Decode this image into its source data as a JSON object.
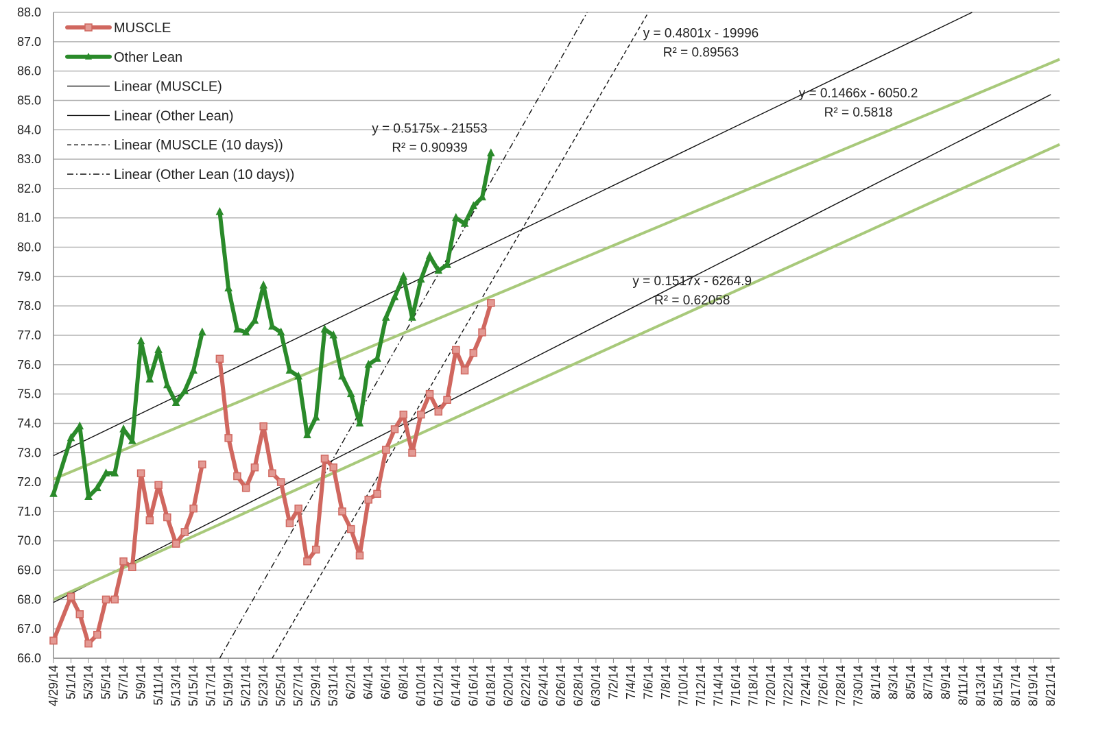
{
  "chart_data": {
    "type": "line",
    "title": "",
    "xlabel": "",
    "ylabel": "",
    "ylim": [
      66.0,
      88.0
    ],
    "yticks": [
      "66.0",
      "67.0",
      "68.0",
      "69.0",
      "70.0",
      "71.0",
      "72.0",
      "73.0",
      "74.0",
      "75.0",
      "76.0",
      "77.0",
      "78.0",
      "79.0",
      "80.0",
      "81.0",
      "82.0",
      "83.0",
      "84.0",
      "85.0",
      "86.0",
      "87.0",
      "88.0"
    ],
    "xlim": [
      "4/29/14",
      "8/22/14"
    ],
    "xticks": [
      "4/29/14",
      "5/1/14",
      "5/3/14",
      "5/5/14",
      "5/7/14",
      "5/9/14",
      "5/11/14",
      "5/13/14",
      "5/15/14",
      "5/17/14",
      "5/19/14",
      "5/21/14",
      "5/23/14",
      "5/25/14",
      "5/27/14",
      "5/29/14",
      "5/31/14",
      "6/2/14",
      "6/4/14",
      "6/6/14",
      "6/8/14",
      "6/10/14",
      "6/12/14",
      "6/14/14",
      "6/16/14",
      "6/18/14",
      "6/20/14",
      "6/22/14",
      "6/24/14",
      "6/26/14",
      "6/28/14",
      "6/30/14",
      "7/2/14",
      "7/4/14",
      "7/6/14",
      "7/8/14",
      "7/10/14",
      "7/12/14",
      "7/14/14",
      "7/16/14",
      "7/18/14",
      "7/20/14",
      "7/22/14",
      "7/24/14",
      "7/26/14",
      "7/28/14",
      "7/30/14",
      "8/1/14",
      "8/3/14",
      "8/5/14",
      "8/7/14",
      "8/9/14",
      "8/11/14",
      "8/13/14",
      "8/15/14",
      "8/17/14",
      "8/19/14",
      "8/21/14"
    ],
    "grid": true,
    "legend_position": "top-left",
    "series": [
      {
        "name": "MUSCLE",
        "color": "#d0675f",
        "marker": "square",
        "points": [
          [
            "4/29/14",
            66.6
          ],
          [
            "5/1/14",
            68.1
          ],
          [
            "5/2/14",
            67.5
          ],
          [
            "5/3/14",
            66.5
          ],
          [
            "5/4/14",
            66.8
          ],
          [
            "5/5/14",
            68.0
          ],
          [
            "5/6/14",
            68.0
          ],
          [
            "5/7/14",
            69.3
          ],
          [
            "5/8/14",
            69.1
          ],
          [
            "5/9/14",
            72.3
          ],
          [
            "5/10/14",
            70.7
          ],
          [
            "5/11/14",
            71.9
          ],
          [
            "5/12/14",
            70.8
          ],
          [
            "5/13/14",
            69.9
          ],
          [
            "5/14/14",
            70.3
          ],
          [
            "5/15/14",
            71.1
          ],
          [
            "5/16/14",
            72.6
          ],
          null,
          [
            "5/18/14",
            76.2
          ],
          [
            "5/19/14",
            73.5
          ],
          [
            "5/20/14",
            72.2
          ],
          [
            "5/21/14",
            71.8
          ],
          [
            "5/22/14",
            72.5
          ],
          [
            "5/23/14",
            73.9
          ],
          [
            "5/24/14",
            72.3
          ],
          [
            "5/25/14",
            72.0
          ],
          [
            "5/26/14",
            70.6
          ],
          [
            "5/27/14",
            71.1
          ],
          [
            "5/28/14",
            69.3
          ],
          [
            "5/29/14",
            69.7
          ],
          [
            "5/30/14",
            72.8
          ],
          [
            "5/31/14",
            72.5
          ],
          [
            "6/1/14",
            71.0
          ],
          [
            "6/2/14",
            70.4
          ],
          [
            "6/3/14",
            69.5
          ],
          [
            "6/4/14",
            71.4
          ],
          [
            "6/5/14",
            71.6
          ],
          [
            "6/6/14",
            73.1
          ],
          [
            "6/7/14",
            73.8
          ],
          [
            "6/8/14",
            74.3
          ],
          [
            "6/9/14",
            73.0
          ],
          [
            "6/10/14",
            74.3
          ],
          [
            "6/11/14",
            75.0
          ],
          [
            "6/12/14",
            74.4
          ],
          [
            "6/13/14",
            74.8
          ],
          [
            "6/14/14",
            76.5
          ],
          [
            "6/15/14",
            75.8
          ],
          [
            "6/16/14",
            76.4
          ],
          [
            "6/17/14",
            77.1
          ],
          [
            "6/18/14",
            78.1
          ]
        ]
      },
      {
        "name": "Other Lean",
        "color": "#2a8a2a",
        "marker": "triangle",
        "points": [
          [
            "4/29/14",
            71.6
          ],
          [
            "5/1/14",
            73.5
          ],
          [
            "5/2/14",
            73.9
          ],
          [
            "5/3/14",
            71.5
          ],
          [
            "5/4/14",
            71.8
          ],
          [
            "5/5/14",
            72.3
          ],
          [
            "5/6/14",
            72.3
          ],
          [
            "5/7/14",
            73.8
          ],
          [
            "5/8/14",
            73.4
          ],
          [
            "5/9/14",
            76.8
          ],
          [
            "5/10/14",
            75.5
          ],
          [
            "5/11/14",
            76.5
          ],
          [
            "5/12/14",
            75.3
          ],
          [
            "5/13/14",
            74.7
          ],
          [
            "5/14/14",
            75.1
          ],
          [
            "5/15/14",
            75.8
          ],
          [
            "5/16/14",
            77.1
          ],
          null,
          [
            "5/18/14",
            81.2
          ],
          [
            "5/19/14",
            78.6
          ],
          [
            "5/20/14",
            77.2
          ],
          [
            "5/21/14",
            77.1
          ],
          [
            "5/22/14",
            77.5
          ],
          [
            "5/23/14",
            78.7
          ],
          [
            "5/24/14",
            77.3
          ],
          [
            "5/25/14",
            77.1
          ],
          [
            "5/26/14",
            75.8
          ],
          [
            "5/27/14",
            75.6
          ],
          [
            "5/28/14",
            73.6
          ],
          [
            "5/29/14",
            74.2
          ],
          [
            "5/30/14",
            77.2
          ],
          [
            "5/31/14",
            77.0
          ],
          [
            "6/1/14",
            75.6
          ],
          [
            "6/2/14",
            75.0
          ],
          [
            "6/3/14",
            74.0
          ],
          [
            "6/4/14",
            76.0
          ],
          [
            "6/5/14",
            76.2
          ],
          [
            "6/6/14",
            77.6
          ],
          [
            "6/7/14",
            78.3
          ],
          [
            "6/8/14",
            79.0
          ],
          [
            "6/9/14",
            77.6
          ],
          [
            "6/10/14",
            78.9
          ],
          [
            "6/11/14",
            79.7
          ],
          [
            "6/12/14",
            79.2
          ],
          [
            "6/13/14",
            79.4
          ],
          [
            "6/14/14",
            81.0
          ],
          [
            "6/15/14",
            80.8
          ],
          [
            "6/16/14",
            81.4
          ],
          [
            "6/17/14",
            81.7
          ],
          [
            "6/18/14",
            83.2
          ]
        ]
      },
      {
        "name": "Linear (MUSCLE)",
        "type": "trendline",
        "style": "solid",
        "color": "#111111",
        "from": [
          "4/29/14",
          67.9
        ],
        "to": [
          "8/21/14",
          85.2
        ]
      },
      {
        "name": "Linear (Other Lean)",
        "type": "trendline",
        "style": "solid",
        "color": "#111111",
        "from": [
          "4/29/14",
          72.9
        ],
        "to": [
          "8/12/14",
          88.0
        ]
      },
      {
        "name": "Linear (MUSCLE (10 days))",
        "type": "trendline",
        "style": "dashed",
        "color": "#111111",
        "from": [
          "5/24/14",
          66.0
        ],
        "to": [
          "7/6/14",
          88.0
        ]
      },
      {
        "name": "Linear (Other Lean (10 days))",
        "type": "trendline",
        "style": "dashdot",
        "color": "#111111",
        "from": [
          "5/18/14",
          66.0
        ],
        "to": [
          "6/29/14",
          88.0
        ]
      },
      {
        "name": "",
        "type": "trendline",
        "style": "solid",
        "color": "#a8c97a",
        "from": [
          "4/29/14",
          68.0
        ],
        "to": [
          "8/22/14",
          83.5
        ]
      },
      {
        "name": "",
        "type": "trendline",
        "style": "solid",
        "color": "#a8c97a",
        "from": [
          "4/29/14",
          72.1
        ],
        "to": [
          "8/22/14",
          86.4
        ]
      }
    ],
    "annotations": [
      {
        "lines": [
          "y = 0.5175x - 21553",
          "R² = 0.90939"
        ],
        "anchor": [
          "6/11/14",
          83.9
        ]
      },
      {
        "lines": [
          "y = 0.4801x - 19996",
          "R² = 0.89563"
        ],
        "anchor": [
          "7/12/14",
          87.15
        ]
      },
      {
        "lines": [
          "y = 0.1466x - 6050.2",
          "R² = 0.5818"
        ],
        "anchor": [
          "7/30/14",
          85.1
        ]
      },
      {
        "lines": [
          "y = 0.1517x - 6264.9",
          "R² = 0.62058"
        ],
        "anchor": [
          "7/11/14",
          78.7
        ]
      }
    ]
  }
}
